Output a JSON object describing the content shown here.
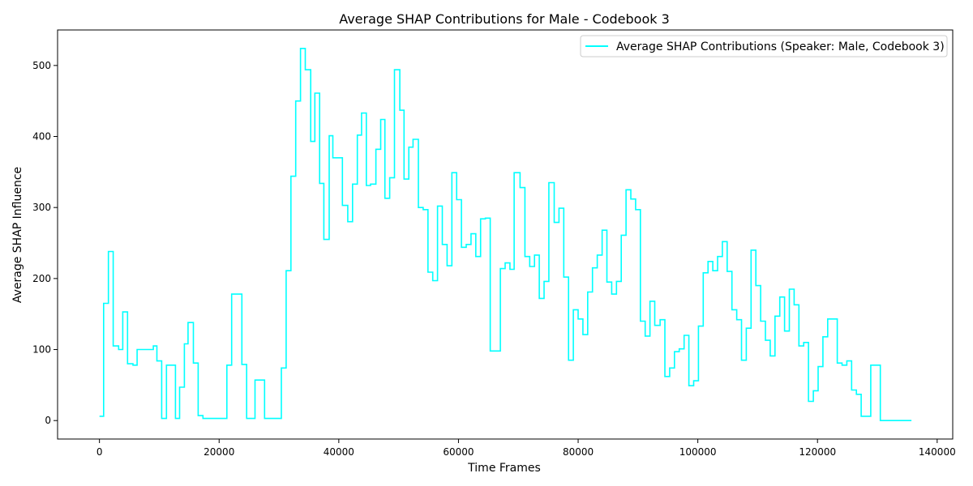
{
  "chart_data": {
    "type": "line",
    "step": true,
    "title": "Average SHAP Contributions for Male - Codebook 3",
    "xlabel": "Time Frames",
    "ylabel": "Average SHAP Influence",
    "xlim": [
      -7000,
      142600
    ],
    "ylim": [
      -26,
      550
    ],
    "xticks": [
      0,
      20000,
      40000,
      60000,
      80000,
      100000,
      120000,
      140000
    ],
    "yticks": [
      0,
      100,
      200,
      300,
      400,
      500
    ],
    "legend_position": "top-right",
    "grid": false,
    "series": [
      {
        "name": "Average SHAP Contributions (Speaker: Male, Codebook 3)",
        "color": "#00ffff",
        "points": [
          [
            0,
            6
          ],
          [
            700,
            165
          ],
          [
            1500,
            238
          ],
          [
            2300,
            105
          ],
          [
            3200,
            100
          ],
          [
            3900,
            153
          ],
          [
            4700,
            80
          ],
          [
            5600,
            78
          ],
          [
            6300,
            100
          ],
          [
            9000,
            105
          ],
          [
            9600,
            84
          ],
          [
            10400,
            3
          ],
          [
            11200,
            78
          ],
          [
            12700,
            3
          ],
          [
            13400,
            47
          ],
          [
            14200,
            108
          ],
          [
            14800,
            138
          ],
          [
            15700,
            81
          ],
          [
            16500,
            7
          ],
          [
            17300,
            3
          ],
          [
            21300,
            78
          ],
          [
            22100,
            178
          ],
          [
            23800,
            79
          ],
          [
            24600,
            3
          ],
          [
            26000,
            57
          ],
          [
            27600,
            3
          ],
          [
            30400,
            74
          ],
          [
            31200,
            211
          ],
          [
            32000,
            344
          ],
          [
            32800,
            450
          ],
          [
            33600,
            524
          ],
          [
            34400,
            494
          ],
          [
            35300,
            393
          ],
          [
            36000,
            461
          ],
          [
            36800,
            334
          ],
          [
            37500,
            255
          ],
          [
            38400,
            401
          ],
          [
            39000,
            370
          ],
          [
            40600,
            303
          ],
          [
            41500,
            280
          ],
          [
            42300,
            333
          ],
          [
            43100,
            402
          ],
          [
            43800,
            433
          ],
          [
            44600,
            331
          ],
          [
            45300,
            333
          ],
          [
            46200,
            382
          ],
          [
            47000,
            424
          ],
          [
            47700,
            313
          ],
          [
            48500,
            342
          ],
          [
            49300,
            494
          ],
          [
            50200,
            437
          ],
          [
            50900,
            340
          ],
          [
            51700,
            385
          ],
          [
            52400,
            396
          ],
          [
            53300,
            300
          ],
          [
            54100,
            297
          ],
          [
            54900,
            209
          ],
          [
            55700,
            197
          ],
          [
            56500,
            302
          ],
          [
            57300,
            248
          ],
          [
            58100,
            218
          ],
          [
            58900,
            349
          ],
          [
            59700,
            311
          ],
          [
            60500,
            244
          ],
          [
            61300,
            248
          ],
          [
            62100,
            263
          ],
          [
            62900,
            231
          ],
          [
            63700,
            284
          ],
          [
            64500,
            285
          ],
          [
            65300,
            98
          ],
          [
            67000,
            214
          ],
          [
            67800,
            222
          ],
          [
            68600,
            213
          ],
          [
            69300,
            349
          ],
          [
            70300,
            328
          ],
          [
            71100,
            231
          ],
          [
            71900,
            217
          ],
          [
            72700,
            233
          ],
          [
            73500,
            172
          ],
          [
            74300,
            196
          ],
          [
            75100,
            335
          ],
          [
            76000,
            279
          ],
          [
            76800,
            299
          ],
          [
            77600,
            202
          ],
          [
            78400,
            85
          ],
          [
            79200,
            156
          ],
          [
            80000,
            143
          ],
          [
            80800,
            121
          ],
          [
            81600,
            181
          ],
          [
            82400,
            215
          ],
          [
            83200,
            233
          ],
          [
            84000,
            268
          ],
          [
            84800,
            195
          ],
          [
            85600,
            178
          ],
          [
            86400,
            196
          ],
          [
            87200,
            261
          ],
          [
            88000,
            325
          ],
          [
            88800,
            312
          ],
          [
            89600,
            297
          ],
          [
            90400,
            140
          ],
          [
            91200,
            119
          ],
          [
            92000,
            168
          ],
          [
            92800,
            134
          ],
          [
            93700,
            142
          ],
          [
            94500,
            62
          ],
          [
            95300,
            74
          ],
          [
            96100,
            97
          ],
          [
            96900,
            101
          ],
          [
            97700,
            120
          ],
          [
            98500,
            49
          ],
          [
            99300,
            56
          ],
          [
            100100,
            133
          ],
          [
            100900,
            208
          ],
          [
            101700,
            224
          ],
          [
            102500,
            211
          ],
          [
            103300,
            231
          ],
          [
            104100,
            252
          ],
          [
            104900,
            210
          ],
          [
            105700,
            156
          ],
          [
            106500,
            142
          ],
          [
            107300,
            85
          ],
          [
            108100,
            130
          ],
          [
            108900,
            240
          ],
          [
            109700,
            190
          ],
          [
            110500,
            140
          ],
          [
            111300,
            113
          ],
          [
            112100,
            91
          ],
          [
            112900,
            147
          ],
          [
            113700,
            174
          ],
          [
            114500,
            126
          ],
          [
            115300,
            185
          ],
          [
            116100,
            163
          ],
          [
            116900,
            105
          ],
          [
            117700,
            110
          ],
          [
            118500,
            27
          ],
          [
            119300,
            42
          ],
          [
            120100,
            76
          ],
          [
            120900,
            118
          ],
          [
            121700,
            143
          ],
          [
            123300,
            81
          ],
          [
            124100,
            78
          ],
          [
            124900,
            84
          ],
          [
            125700,
            43
          ],
          [
            126500,
            37
          ],
          [
            127300,
            6
          ],
          [
            128900,
            78
          ],
          [
            130500,
            0
          ],
          [
            135700,
            0
          ]
        ]
      }
    ]
  }
}
